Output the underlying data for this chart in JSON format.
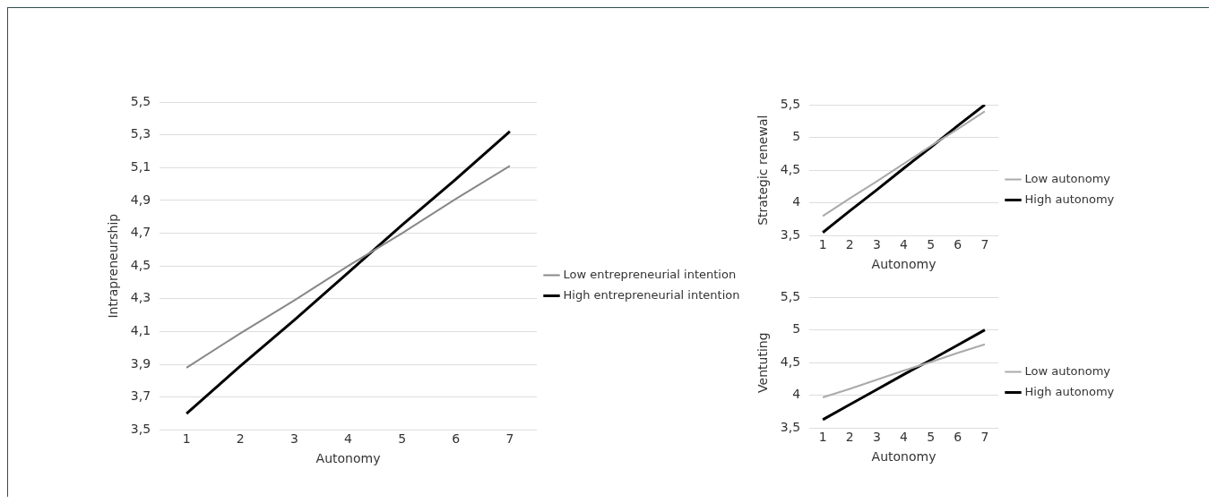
{
  "chart_data": [
    {
      "type": "line",
      "categories": [
        "1",
        "2",
        "3",
        "4",
        "5",
        "6",
        "7"
      ],
      "xlabel": "Autonomy",
      "ylabel": "Intrapreneurship",
      "ylim": [
        3.5,
        5.5
      ],
      "yticks": [
        {
          "value": 3.5,
          "label": "3,5"
        },
        {
          "value": 3.7,
          "label": "3,7"
        },
        {
          "value": 3.9,
          "label": "3,9"
        },
        {
          "value": 4.1,
          "label": "4,1"
        },
        {
          "value": 4.3,
          "label": "4,3"
        },
        {
          "value": 4.5,
          "label": "4,5"
        },
        {
          "value": 4.7,
          "label": "4,7"
        },
        {
          "value": 4.9,
          "label": "4,9"
        },
        {
          "value": 5.1,
          "label": "5,1"
        },
        {
          "value": 5.3,
          "label": "5,3"
        },
        {
          "value": 5.5,
          "label": "5,5"
        }
      ],
      "grid": "y",
      "legend": "right",
      "marker": "none",
      "series": [
        {
          "name": "Low entrepreneurial intention",
          "color": "#888888",
          "values": [
            3.88,
            4.09,
            4.29,
            4.5,
            4.7,
            4.91,
            5.11
          ]
        },
        {
          "name": "High entrepreneurial intention",
          "color": "#000000",
          "values": [
            3.6,
            3.89,
            4.17,
            4.46,
            4.75,
            5.03,
            5.32
          ]
        }
      ]
    },
    {
      "type": "line",
      "categories": [
        "1",
        "2",
        "3",
        "4",
        "5",
        "6",
        "7"
      ],
      "xlabel": "Autonomy",
      "ylabel": "Strategic renewal",
      "ylim": [
        3.5,
        5.5
      ],
      "yticks": [
        {
          "value": 3.5,
          "label": "3,5"
        },
        {
          "value": 4,
          "label": "4"
        },
        {
          "value": 4.5,
          "label": "4,5"
        },
        {
          "value": 5,
          "label": "5"
        },
        {
          "value": 5.5,
          "label": "5,5"
        }
      ],
      "grid": "y",
      "legend": "right",
      "marker": "none",
      "series": [
        {
          "name": "Low autonomy",
          "color": "#aaaaaa",
          "values": [
            3.8,
            4.07,
            4.33,
            4.6,
            4.87,
            5.13,
            5.4
          ]
        },
        {
          "name": "High autonomy",
          "color": "#000000",
          "values": [
            3.55,
            3.88,
            4.2,
            4.53,
            4.85,
            5.18,
            5.5
          ]
        }
      ]
    },
    {
      "type": "line",
      "categories": [
        "1",
        "2",
        "3",
        "4",
        "5",
        "6",
        "7"
      ],
      "xlabel": "Autonomy",
      "ylabel": "Ventuting",
      "ylim": [
        3.5,
        5.5
      ],
      "yticks": [
        {
          "value": 3.5,
          "label": "3,5"
        },
        {
          "value": 4,
          "label": "4"
        },
        {
          "value": 4.5,
          "label": "4,5"
        },
        {
          "value": 5,
          "label": "5"
        },
        {
          "value": 5.5,
          "label": "5,5"
        }
      ],
      "grid": "y",
      "legend": "right",
      "marker": "none",
      "series": [
        {
          "name": "Low autonomy",
          "color": "#aaaaaa",
          "values": [
            3.97,
            4.1,
            4.24,
            4.38,
            4.51,
            4.65,
            4.78
          ]
        },
        {
          "name": "High autonomy",
          "color": "#000000",
          "values": [
            3.63,
            3.86,
            4.09,
            4.32,
            4.54,
            4.77,
            5.0
          ]
        }
      ]
    }
  ]
}
